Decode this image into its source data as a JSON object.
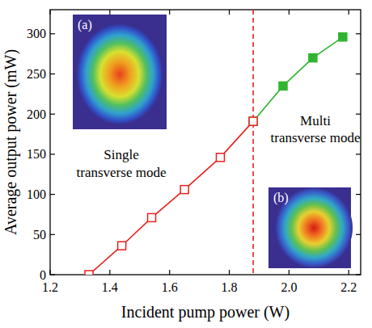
{
  "chart_data": {
    "type": "line",
    "x_label": "Incident pump power (W)",
    "y_label": "Average output power (mW)",
    "xlim": [
      1.2,
      2.24
    ],
    "ylim": [
      0,
      330
    ],
    "xticks": [
      1.2,
      1.4,
      1.6,
      1.8,
      2.0,
      2.2
    ],
    "yticks": [
      0,
      50,
      100,
      150,
      200,
      250,
      300
    ],
    "series": [
      {
        "x": [
          1.33,
          1.44,
          1.54,
          1.65,
          1.77,
          1.88
        ],
        "values": [
          0,
          36,
          71,
          106,
          146,
          191
        ],
        "color": "#e8211e",
        "marker": "square-open",
        "line_style": "solid"
      },
      {
        "x": [
          1.88,
          1.98,
          2.08,
          2.18
        ],
        "values": [
          191,
          235,
          270,
          296
        ],
        "color": "#2fb52f",
        "marker": "square",
        "line_style": "solid"
      }
    ],
    "divider": {
      "x": 1.88,
      "color": "#e8211e",
      "line_style": "dashed"
    },
    "insets": [
      {
        "label": "(a)",
        "caption": [
          "Single",
          "transverse mode"
        ]
      },
      {
        "label": "(b)",
        "caption": [
          "Multi",
          "transverse mode"
        ]
      }
    ]
  }
}
